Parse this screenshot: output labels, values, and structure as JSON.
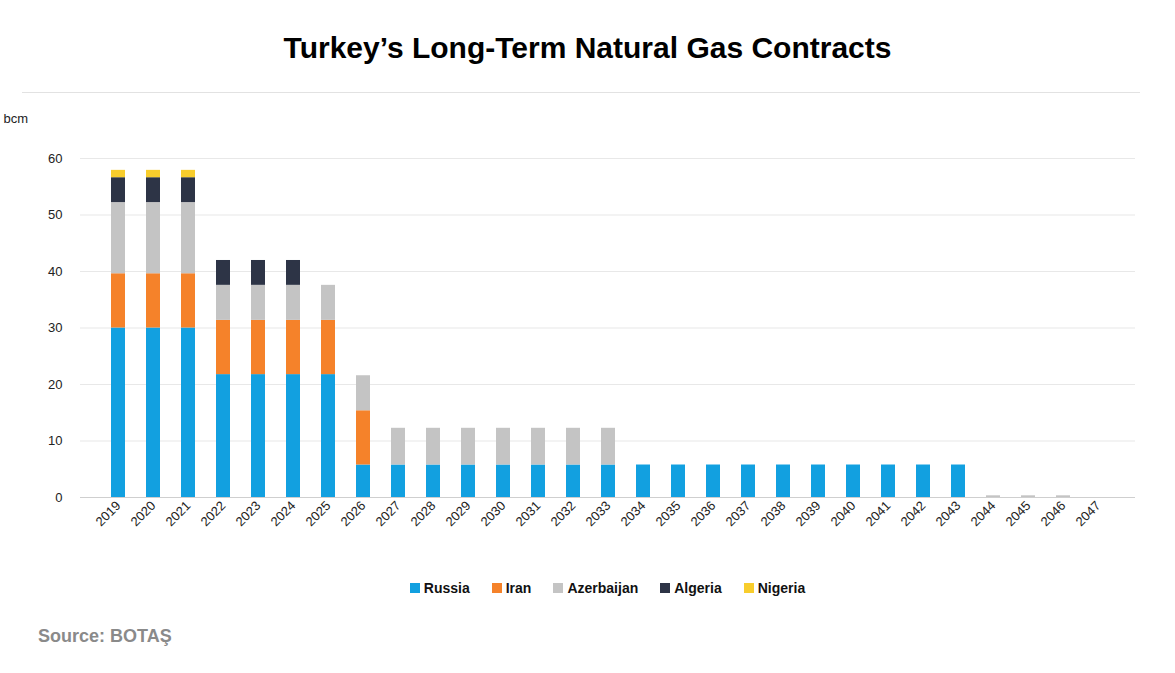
{
  "chart_data": {
    "type": "bar",
    "title": "Turkey’s Long-Term Natural Gas Contracts",
    "y_label": "bcm",
    "source": "Source: BOTAŞ",
    "stacked": true,
    "grid": true,
    "ylim": [
      0,
      60
    ],
    "yticks": [
      0,
      10,
      20,
      30,
      40,
      50,
      60
    ],
    "categories": [
      "2019",
      "2020",
      "2021",
      "2022",
      "2023",
      "2024",
      "2025",
      "2026",
      "2027",
      "2028",
      "2029",
      "2030",
      "2031",
      "2032",
      "2033",
      "2034",
      "2035",
      "2036",
      "2037",
      "2038",
      "2039",
      "2040",
      "2041",
      "2042",
      "2043",
      "2044",
      "2045",
      "2046",
      "2047"
    ],
    "series": [
      {
        "name": "Russia",
        "color": "#12a0e0",
        "values": [
          30,
          30,
          30,
          21.75,
          21.75,
          21.75,
          21.75,
          5.75,
          5.75,
          5.75,
          5.75,
          5.75,
          5.75,
          5.75,
          5.75,
          5.75,
          5.75,
          5.75,
          5.75,
          5.75,
          5.75,
          5.75,
          5.75,
          5.75,
          5.75,
          0,
          0,
          0,
          0
        ]
      },
      {
        "name": "Iran",
        "color": "#f5822a",
        "values": [
          9.6,
          9.6,
          9.6,
          9.6,
          9.6,
          9.6,
          9.6,
          9.6,
          0,
          0,
          0,
          0,
          0,
          0,
          0,
          0,
          0,
          0,
          0,
          0,
          0,
          0,
          0,
          0,
          0,
          0,
          0,
          0,
          0
        ]
      },
      {
        "name": "Azerbaijan",
        "color": "#c4c4c4",
        "values": [
          12.6,
          12.6,
          12.6,
          6.2,
          6.2,
          6.2,
          6.2,
          6.2,
          6.5,
          6.5,
          6.5,
          6.5,
          6.5,
          6.5,
          6.5,
          0,
          0,
          0,
          0,
          0,
          0,
          0,
          0,
          0,
          0,
          0.3,
          0.3,
          0.3,
          0
        ]
      },
      {
        "name": "Algeria",
        "color": "#2d3446",
        "values": [
          4.4,
          4.4,
          4.4,
          4.4,
          4.4,
          4.4,
          0,
          0,
          0,
          0,
          0,
          0,
          0,
          0,
          0,
          0,
          0,
          0,
          0,
          0,
          0,
          0,
          0,
          0,
          0,
          0,
          0,
          0,
          0
        ]
      },
      {
        "name": "Nigeria",
        "color": "#f8cd2c",
        "values": [
          1.3,
          1.3,
          1.3,
          0,
          0,
          0,
          0,
          0,
          0,
          0,
          0,
          0,
          0,
          0,
          0,
          0,
          0,
          0,
          0,
          0,
          0,
          0,
          0,
          0,
          0,
          0,
          0,
          0,
          0
        ]
      }
    ]
  }
}
